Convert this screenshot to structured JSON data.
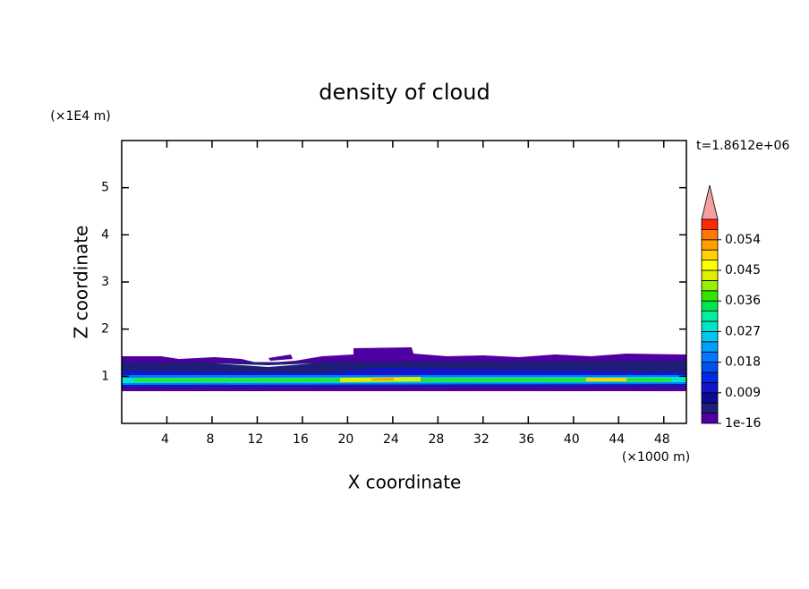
{
  "chart_data": {
    "type": "contour",
    "title": "density of cloud",
    "x_label": "X coordinate",
    "y_label": "Z coordinate",
    "x_unit": "(×1000 m)",
    "y_unit": "(×1E4 m)",
    "time_label": "t=1.8612e+06",
    "xlim": [
      0,
      50
    ],
    "xticks": [
      4,
      8,
      12,
      16,
      20,
      24,
      28,
      32,
      36,
      40,
      44,
      48
    ],
    "ylim": [
      0,
      6
    ],
    "yticks": [
      1,
      2,
      3,
      4,
      5
    ],
    "colorbar": {
      "clim": [
        1e-16,
        0.06
      ],
      "ticks": [
        {
          "value": 1e-16,
          "label": "1e-16"
        },
        0.009,
        0.018,
        0.027,
        0.036,
        0.045,
        0.054
      ],
      "colors": [
        "#5000a0",
        "#1e1e78",
        "#0a0a96",
        "#1414c8",
        "#0028e6",
        "#0050f0",
        "#0078ff",
        "#00a0ff",
        "#00c8f0",
        "#00e6c8",
        "#00f0a0",
        "#00e650",
        "#32e600",
        "#96f000",
        "#dcf000",
        "#ffff00",
        "#ffd200",
        "#ffa000",
        "#ff7800",
        "#ff2800"
      ],
      "extend_color": "#f4a0a0"
    }
  }
}
